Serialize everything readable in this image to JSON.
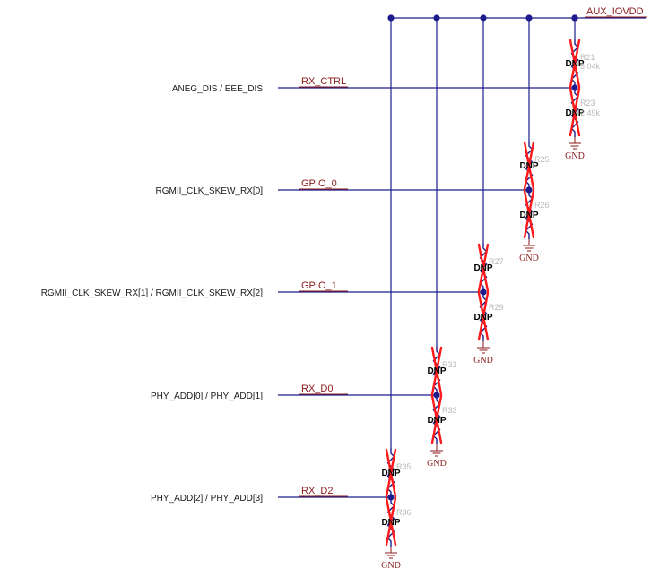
{
  "power_net": {
    "label": "AUX_IOVDD"
  },
  "rows": [
    {
      "signal": "ANEG_DIS / EEE_DIS",
      "net": "RX_CTRL"
    },
    {
      "signal": "RGMII_CLK_SKEW_RX[0]",
      "net": "GPIO_0"
    },
    {
      "signal": "RGMII_CLK_SKEW_RX[1] / RGMII_CLK_SKEW_RX[2]",
      "net": "GPIO_1"
    },
    {
      "signal": "PHY_ADD[0] / PHY_ADD[1]",
      "net": "RX_D0"
    },
    {
      "signal": "PHY_ADD[2] / PHY_ADD[3]",
      "net": "RX_D2"
    }
  ],
  "dividers": [
    {
      "top": {
        "ref": "R21",
        "value": "6.04k",
        "dnp": "DNP"
      },
      "bottom": {
        "ref": "R23",
        "value": "2.49k",
        "dnp": "DNP"
      },
      "gnd": "GND"
    },
    {
      "top": {
        "ref": "R25",
        "value": "",
        "dnp": "DNP"
      },
      "bottom": {
        "ref": "R26",
        "value": "",
        "dnp": "DNP"
      },
      "gnd": "GND"
    },
    {
      "top": {
        "ref": "R27",
        "value": "",
        "dnp": "DNP"
      },
      "bottom": {
        "ref": "R29",
        "value": "",
        "dnp": "DNP"
      },
      "gnd": "GND"
    },
    {
      "top": {
        "ref": "R31",
        "value": "",
        "dnp": "DNP"
      },
      "bottom": {
        "ref": "R33",
        "value": "",
        "dnp": "DNP"
      },
      "gnd": "GND"
    },
    {
      "top": {
        "ref": "R35",
        "value": "",
        "dnp": "DNP"
      },
      "bottom": {
        "ref": "R36",
        "value": "",
        "dnp": "DNP"
      },
      "gnd": "GND"
    }
  ]
}
